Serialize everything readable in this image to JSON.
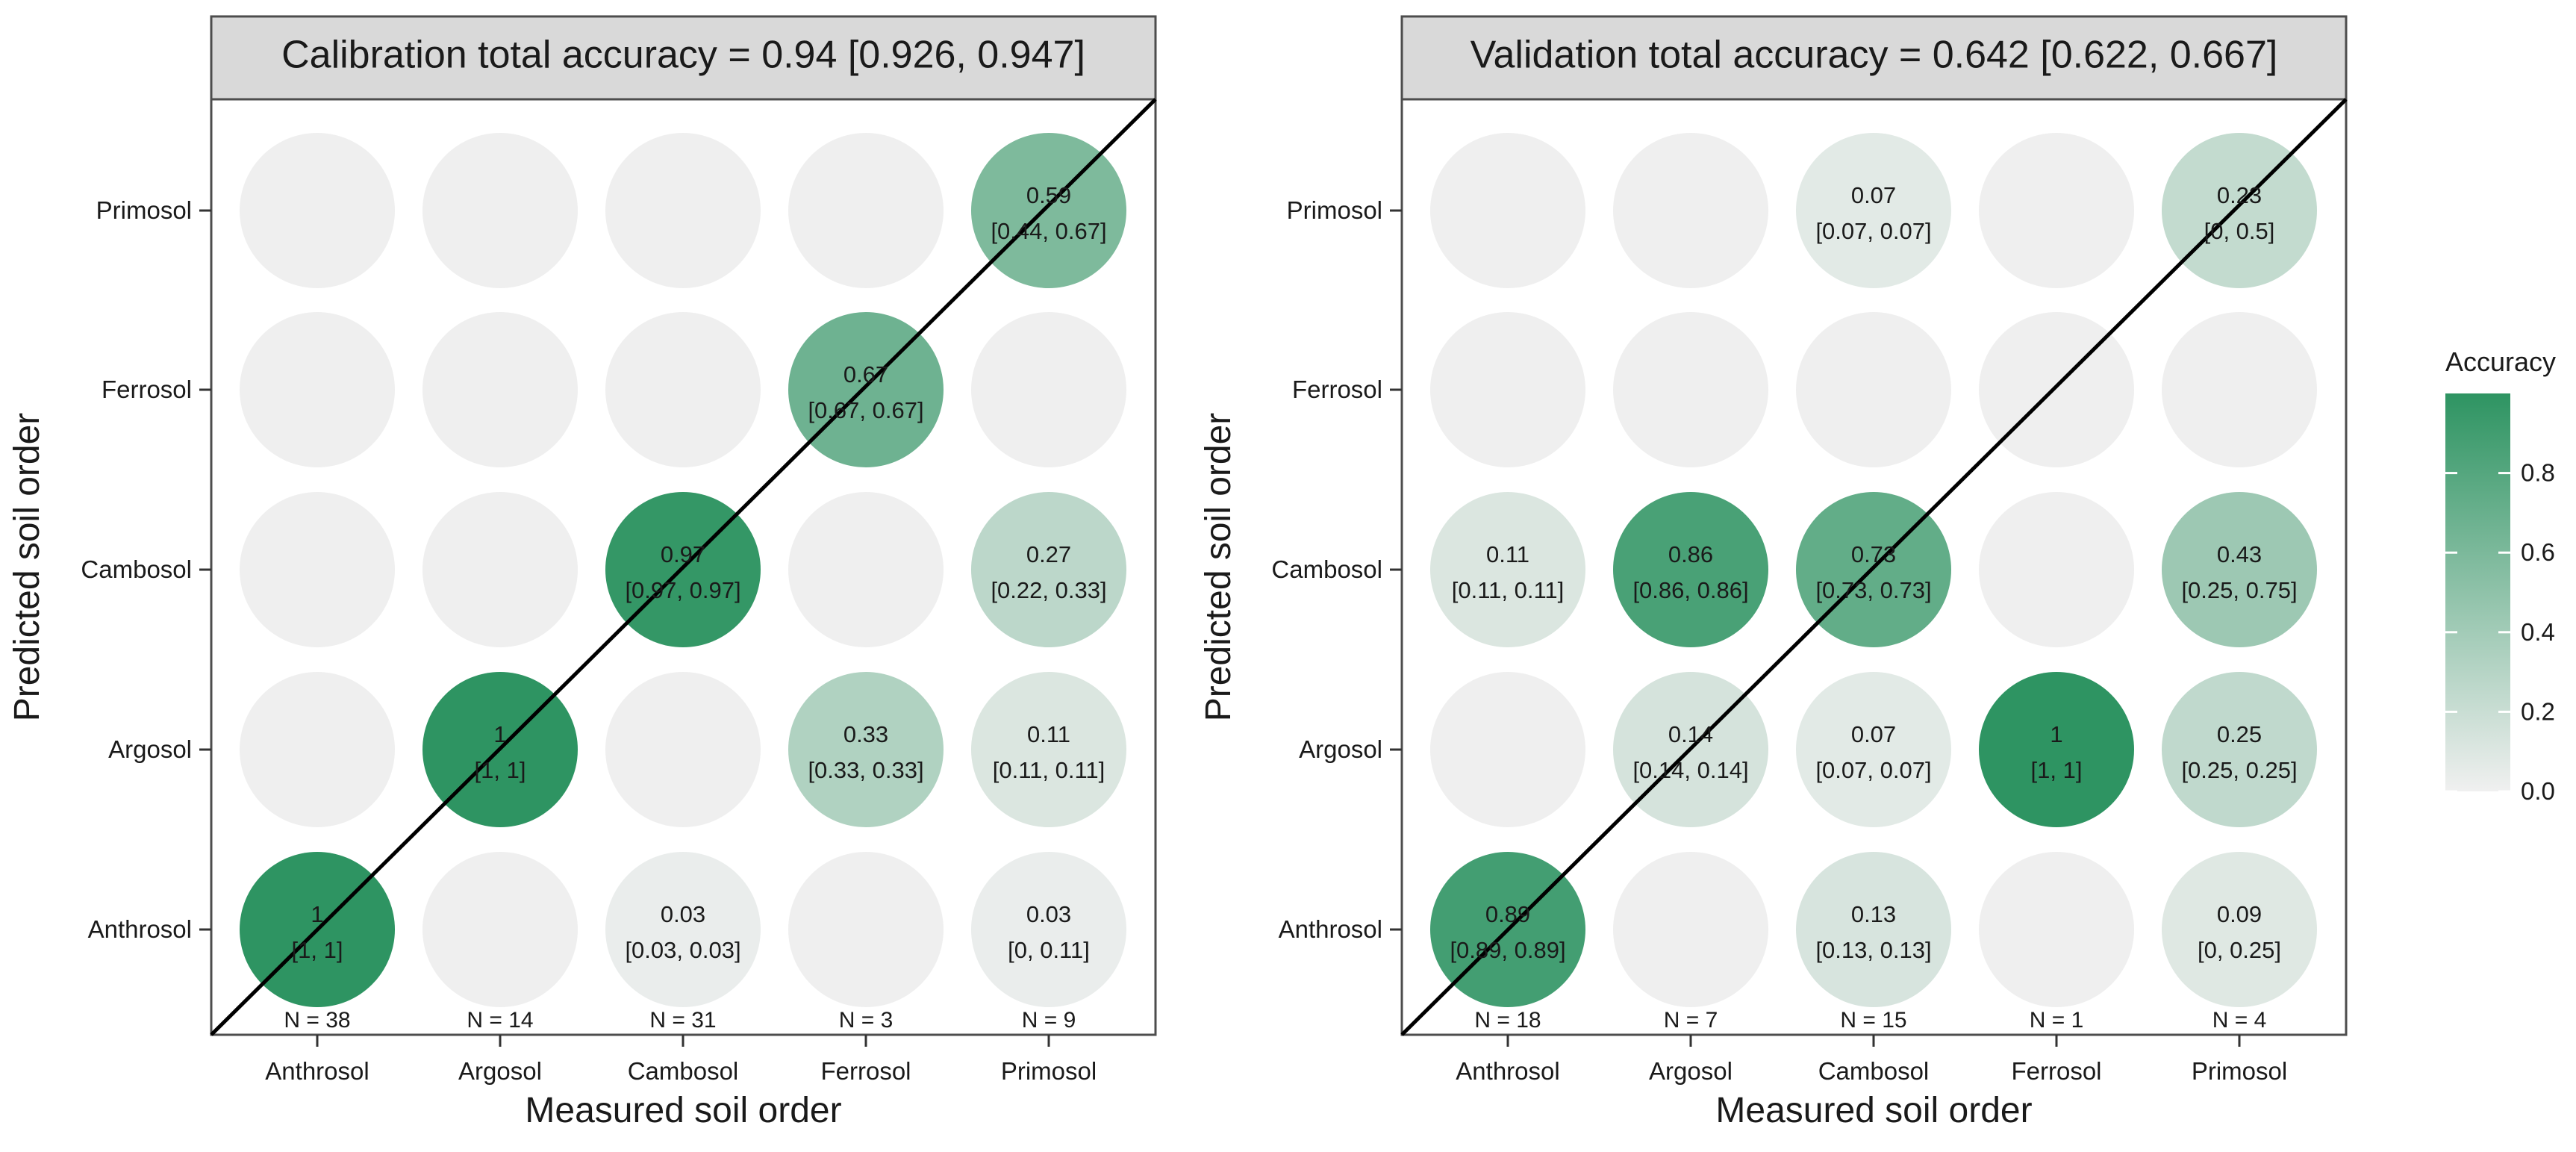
{
  "chart_data": [
    {
      "type": "bubble-matrix",
      "title": "Calibration total accuracy = 0.94 [0.926, 0.947]",
      "xlabel": "Measured soil order",
      "ylabel": "Predicted soil order",
      "categories": [
        "Anthrosol",
        "Argosol",
        "Cambosol",
        "Ferrosol",
        "Primosol"
      ],
      "n_labels": [
        "N = 38",
        "N = 14",
        "N = 31",
        "N = 3",
        "N = 9"
      ],
      "cells": [
        {
          "measured": "Anthrosol",
          "predicted": "Anthrosol",
          "value": 1,
          "label": "1",
          "ci": "[1, 1]"
        },
        {
          "measured": "Cambosol",
          "predicted": "Anthrosol",
          "value": 0.03,
          "label": "0.03",
          "ci": "[0.03, 0.03]"
        },
        {
          "measured": "Primosol",
          "predicted": "Anthrosol",
          "value": 0.03,
          "label": "0.03",
          "ci": "[0, 0.11]"
        },
        {
          "measured": "Argosol",
          "predicted": "Argosol",
          "value": 1,
          "label": "1",
          "ci": "[1, 1]"
        },
        {
          "measured": "Ferrosol",
          "predicted": "Argosol",
          "value": 0.33,
          "label": "0.33",
          "ci": "[0.33, 0.33]"
        },
        {
          "measured": "Primosol",
          "predicted": "Argosol",
          "value": 0.11,
          "label": "0.11",
          "ci": "[0.11, 0.11]"
        },
        {
          "measured": "Cambosol",
          "predicted": "Cambosol",
          "value": 0.97,
          "label": "0.97",
          "ci": "[0.97, 0.97]"
        },
        {
          "measured": "Primosol",
          "predicted": "Cambosol",
          "value": 0.27,
          "label": "0.27",
          "ci": "[0.22, 0.33]"
        },
        {
          "measured": "Ferrosol",
          "predicted": "Ferrosol",
          "value": 0.67,
          "label": "0.67",
          "ci": "[0.67, 0.67]"
        },
        {
          "measured": "Primosol",
          "predicted": "Primosol",
          "value": 0.59,
          "label": "0.59",
          "ci": "[0.44, 0.67]"
        }
      ]
    },
    {
      "type": "bubble-matrix",
      "title": "Validation total accuracy = 0.642 [0.622, 0.667]",
      "xlabel": "Measured soil order",
      "ylabel": "Predicted soil order",
      "categories": [
        "Anthrosol",
        "Argosol",
        "Cambosol",
        "Ferrosol",
        "Primosol"
      ],
      "n_labels": [
        "N = 18",
        "N = 7",
        "N = 15",
        "N = 1",
        "N = 4"
      ],
      "cells": [
        {
          "measured": "Anthrosol",
          "predicted": "Anthrosol",
          "value": 0.89,
          "label": "0.89",
          "ci": "[0.89, 0.89]"
        },
        {
          "measured": "Cambosol",
          "predicted": "Anthrosol",
          "value": 0.13,
          "label": "0.13",
          "ci": "[0.13, 0.13]"
        },
        {
          "measured": "Primosol",
          "predicted": "Anthrosol",
          "value": 0.09,
          "label": "0.09",
          "ci": "[0, 0.25]"
        },
        {
          "measured": "Argosol",
          "predicted": "Argosol",
          "value": 0.14,
          "label": "0.14",
          "ci": "[0.14, 0.14]"
        },
        {
          "measured": "Cambosol",
          "predicted": "Argosol",
          "value": 0.07,
          "label": "0.07",
          "ci": "[0.07, 0.07]"
        },
        {
          "measured": "Ferrosol",
          "predicted": "Argosol",
          "value": 1,
          "label": "1",
          "ci": "[1, 1]"
        },
        {
          "measured": "Primosol",
          "predicted": "Argosol",
          "value": 0.25,
          "label": "0.25",
          "ci": "[0.25, 0.25]"
        },
        {
          "measured": "Anthrosol",
          "predicted": "Cambosol",
          "value": 0.11,
          "label": "0.11",
          "ci": "[0.11, 0.11]"
        },
        {
          "measured": "Argosol",
          "predicted": "Cambosol",
          "value": 0.86,
          "label": "0.86",
          "ci": "[0.86, 0.86]"
        },
        {
          "measured": "Cambosol",
          "predicted": "Cambosol",
          "value": 0.73,
          "label": "0.73",
          "ci": "[0.73, 0.73]"
        },
        {
          "measured": "Primosol",
          "predicted": "Cambosol",
          "value": 0.43,
          "label": "0.43",
          "ci": "[0.25, 0.75]"
        },
        {
          "measured": "Cambosol",
          "predicted": "Primosol",
          "value": 0.07,
          "label": "0.07",
          "ci": "[0.07, 0.07]"
        },
        {
          "measured": "Primosol",
          "predicted": "Primosol",
          "value": 0.23,
          "label": "0.23",
          "ci": "[0, 0.5]"
        }
      ]
    }
  ],
  "legend": {
    "title": "Accuracy",
    "ticks": [
      "0.0",
      "0.2",
      "0.4",
      "0.6",
      "0.8"
    ],
    "tick_values": [
      0,
      0.2,
      0.4,
      0.6,
      0.8
    ],
    "range": [
      0,
      1
    ],
    "low_color": "#f0f0f0",
    "high_color": "#2e9462"
  },
  "colors": {
    "empty_cell": "#efefef",
    "panel_border": "#4d4d4d",
    "strip_fill": "#d9d9d9",
    "diagonal": "#000000",
    "text": "#1a1a1a"
  }
}
